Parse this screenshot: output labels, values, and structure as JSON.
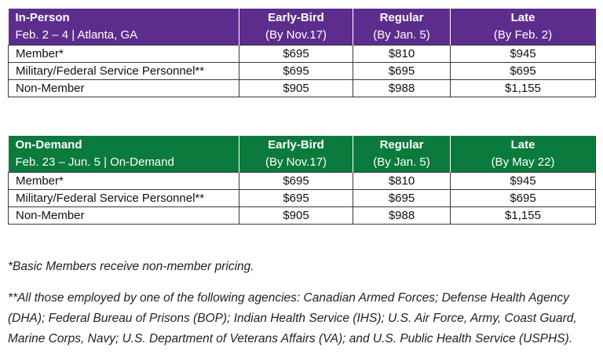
{
  "tables": [
    {
      "heading": "In-Person",
      "subheading": "Feb. 2 – 4 | Atlanta, GA",
      "columns": [
        {
          "title": "Early-Bird",
          "sub": "(By Nov.17)"
        },
        {
          "title": "Regular",
          "sub": "(By Jan. 5)"
        },
        {
          "title": "Late",
          "sub": "(By Feb. 2)"
        }
      ],
      "rows": [
        {
          "label": "Member*",
          "values": [
            "$695",
            "$810",
            "$945"
          ]
        },
        {
          "label": "Military/Federal Service Personnel**",
          "values": [
            "$695",
            "$695",
            "$695"
          ]
        },
        {
          "label": "Non-Member",
          "values": [
            "$905",
            "$988",
            "$1,155"
          ]
        }
      ]
    },
    {
      "heading": "On-Demand",
      "subheading": "Feb. 23 – Jun. 5 | On-Demand",
      "columns": [
        {
          "title": "Early-Bird",
          "sub": "(By Nov.17)"
        },
        {
          "title": "Regular",
          "sub": "(By Jan. 5)"
        },
        {
          "title": "Late",
          "sub": "(By May 22)"
        }
      ],
      "rows": [
        {
          "label": "Member*",
          "values": [
            "$695",
            "$810",
            "$945"
          ]
        },
        {
          "label": "Military/Federal Service Personnel**",
          "values": [
            "$695",
            "$695",
            "$695"
          ]
        },
        {
          "label": "Non-Member",
          "values": [
            "$905",
            "$988",
            "$1,155"
          ]
        }
      ]
    }
  ],
  "notes": {
    "basic_members": "*Basic Members receive non-member pricing.",
    "agencies": "**All those employed by one of the following agencies: Canadian Armed Forces; Defense Health Agency (DHA); Federal Bureau of Prisons (BOP); Indian Health Service (IHS); U.S. Air Force, Army, Coast Guard, Marine Corps, Navy; U.S. Department of Veterans Affairs (VA); and U.S. Public Health Service (USPHS)."
  },
  "colors": {
    "in_person_header": "#5d2d8e",
    "on_demand_header": "#0b7a3d"
  }
}
